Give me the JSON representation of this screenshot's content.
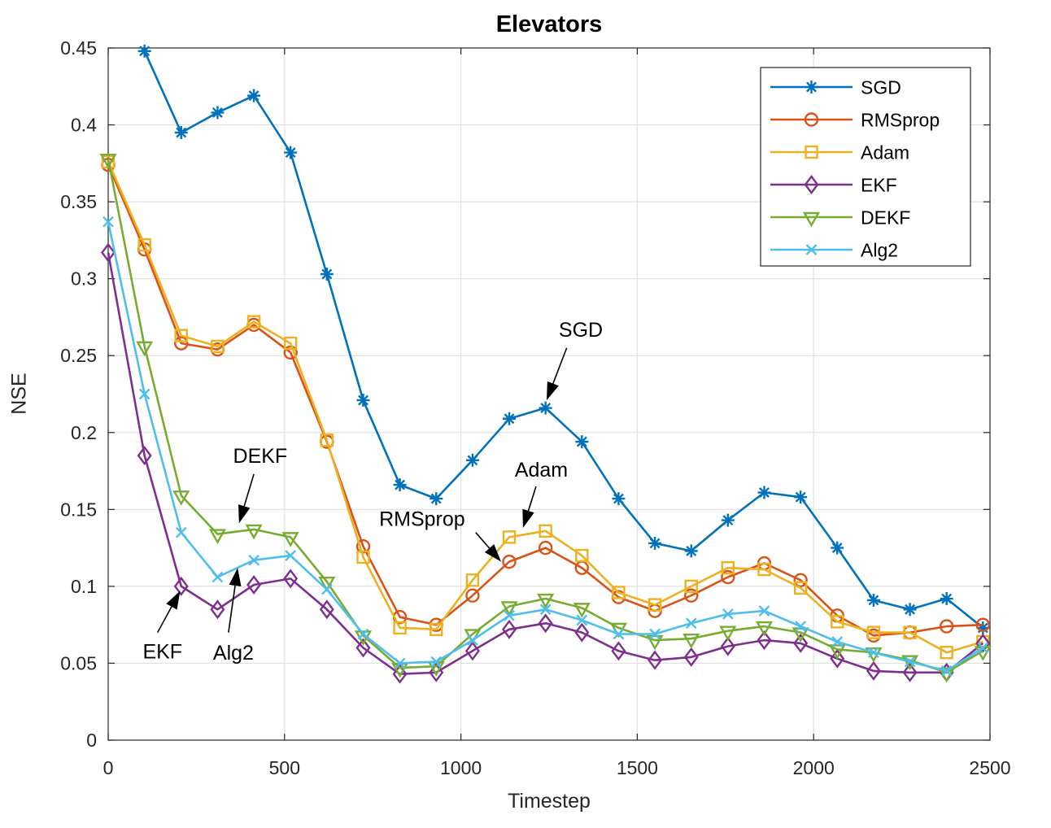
{
  "chart_data": {
    "type": "line",
    "title": "Elevators",
    "xlabel": "Timestep",
    "ylabel": "NSE",
    "xlim": [
      0,
      2500
    ],
    "ylim": [
      0,
      0.45
    ],
    "xticks": [
      0,
      500,
      1000,
      1500,
      2000,
      2500
    ],
    "xtick_labels": [
      "0",
      "500",
      "1000",
      "1500",
      "2000",
      "2500"
    ],
    "yticks": [
      0,
      0.05,
      0.1,
      0.15,
      0.2,
      0.25,
      0.3,
      0.35,
      0.4,
      0.45
    ],
    "ytick_labels": [
      "0",
      "0.05",
      "0.1",
      "0.15",
      "0.2",
      "0.25",
      "0.3",
      "0.35",
      "0.4",
      "0.45"
    ],
    "grid": true,
    "grid_color": "#e0e0e0",
    "axis_color": "#262626",
    "legend": {
      "position": "top-right",
      "entries": [
        "SGD",
        "RMSprop",
        "Adam",
        "EKF",
        "DEKF",
        "Alg2"
      ]
    },
    "x": [
      0,
      103,
      207,
      310,
      413,
      517,
      620,
      723,
      827,
      930,
      1033,
      1137,
      1240,
      1343,
      1447,
      1550,
      1653,
      1757,
      1860,
      1963,
      2067,
      2170,
      2273,
      2377,
      2480
    ],
    "series": [
      {
        "name": "SGD",
        "color": "#0072BD",
        "marker": "asterisk",
        "values": [
          null,
          0.448,
          0.395,
          0.408,
          0.419,
          0.382,
          0.303,
          0.221,
          0.166,
          0.157,
          0.182,
          0.209,
          0.216,
          0.194,
          0.157,
          0.128,
          0.123,
          0.143,
          0.161,
          0.158,
          0.125,
          0.091,
          0.085,
          0.092,
          0.073
        ]
      },
      {
        "name": "RMSprop",
        "color": "#D95319",
        "marker": "circle",
        "values": [
          0.374,
          0.319,
          0.258,
          0.254,
          0.27,
          0.252,
          0.194,
          0.126,
          0.08,
          0.075,
          0.094,
          0.116,
          0.125,
          0.112,
          0.093,
          0.084,
          0.094,
          0.106,
          0.115,
          0.104,
          0.081,
          0.068,
          0.07,
          0.074,
          0.075
        ]
      },
      {
        "name": "Adam",
        "color": "#EDB120",
        "marker": "square",
        "values": [
          0.376,
          0.322,
          0.263,
          0.256,
          0.272,
          0.258,
          0.195,
          0.119,
          0.073,
          0.072,
          0.104,
          0.132,
          0.136,
          0.12,
          0.096,
          0.088,
          0.1,
          0.112,
          0.111,
          0.099,
          0.077,
          0.07,
          0.07,
          0.057,
          0.064
        ]
      },
      {
        "name": "EKF",
        "color": "#7E2F8E",
        "marker": "diamond",
        "values": [
          0.317,
          0.185,
          0.1,
          0.085,
          0.101,
          0.105,
          0.085,
          0.06,
          0.043,
          0.044,
          0.058,
          0.072,
          0.076,
          0.07,
          0.058,
          0.052,
          0.054,
          0.061,
          0.065,
          0.063,
          0.053,
          0.045,
          0.044,
          0.044,
          0.063
        ]
      },
      {
        "name": "DEKF",
        "color": "#77AC30",
        "marker": "triangle-down",
        "values": [
          0.378,
          0.256,
          0.159,
          0.134,
          0.137,
          0.132,
          0.103,
          0.068,
          0.047,
          0.048,
          0.069,
          0.087,
          0.092,
          0.086,
          0.073,
          0.065,
          0.066,
          0.071,
          0.074,
          0.07,
          0.059,
          0.057,
          0.052,
          0.044,
          0.058
        ]
      },
      {
        "name": "Alg2",
        "color": "#4DBEEE",
        "marker": "x",
        "values": [
          0.337,
          0.225,
          0.135,
          0.106,
          0.117,
          0.12,
          0.098,
          0.069,
          0.05,
          0.051,
          0.065,
          0.081,
          0.085,
          0.078,
          0.069,
          0.069,
          0.076,
          0.082,
          0.084,
          0.074,
          0.064,
          0.057,
          0.051,
          0.045,
          0.06
        ]
      }
    ],
    "annotations": [
      {
        "text": "SGD",
        "text_x": 1340,
        "text_y": 0.267,
        "from_x": 1300,
        "from_y": 0.255,
        "to_x": 1243,
        "to_y": 0.221
      },
      {
        "text": "RMSprop",
        "text_x": 890,
        "text_y": 0.144,
        "from_x": 1042,
        "from_y": 0.135,
        "to_x": 1114,
        "to_y": 0.116
      },
      {
        "text": "Adam",
        "text_x": 1228,
        "text_y": 0.176,
        "from_x": 1213,
        "from_y": 0.165,
        "to_x": 1176,
        "to_y": 0.138
      },
      {
        "text": "DEKF",
        "text_x": 431,
        "text_y": 0.185,
        "from_x": 413,
        "from_y": 0.173,
        "to_x": 371,
        "to_y": 0.141
      },
      {
        "text": "EKF",
        "text_x": 154,
        "text_y": 0.058,
        "from_x": 140,
        "from_y": 0.07,
        "to_x": 204,
        "to_y": 0.097
      },
      {
        "text": "Alg2",
        "text_x": 355,
        "text_y": 0.057,
        "from_x": 341,
        "from_y": 0.07,
        "to_x": 367,
        "to_y": 0.112
      }
    ]
  }
}
